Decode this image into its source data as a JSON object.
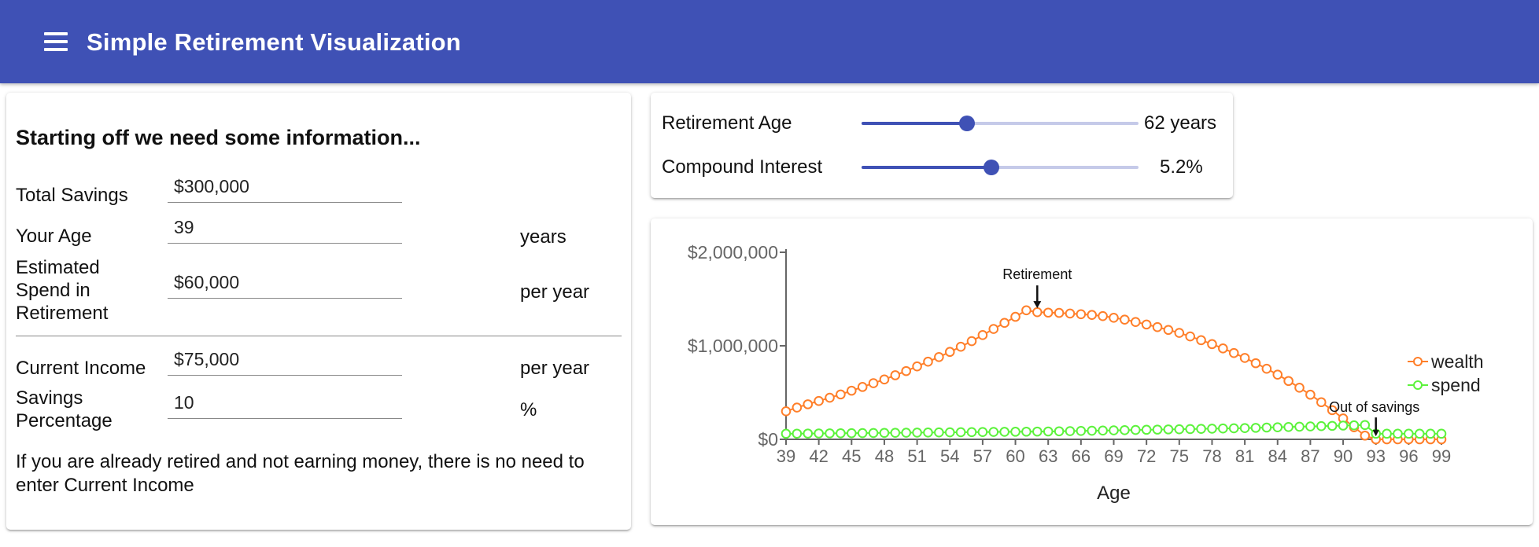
{
  "app": {
    "title": "Simple Retirement Visualization",
    "menu_icon": "hamburger-menu-icon"
  },
  "form": {
    "heading": "Starting off we need some information...",
    "total_savings": {
      "label": "Total Savings",
      "value": "$300,000"
    },
    "age": {
      "label": "Your Age",
      "value": "39",
      "unit": "years"
    },
    "spend": {
      "label_lines": [
        "Estimated",
        "Spend in",
        "Retirement"
      ],
      "value": "$60,000",
      "unit": "per year"
    },
    "income": {
      "label": "Current Income",
      "value": "$75,000",
      "unit": "per year"
    },
    "savings_pct": {
      "label_lines": [
        "Savings",
        "Percentage"
      ],
      "value": "10",
      "unit": "%"
    },
    "note": "If you are already retired and not earning money, there is no need to enter Current Income"
  },
  "sliders": {
    "retirement_age": {
      "label": "Retirement Age",
      "value_text": "62 years",
      "fraction": 0.38
    },
    "interest": {
      "label": "Compound Interest",
      "value_text": "5.2%",
      "fraction": 0.47
    }
  },
  "chart_data": {
    "type": "line",
    "xlabel": "Age",
    "x_ticks": [
      39,
      42,
      45,
      48,
      51,
      54,
      57,
      60,
      63,
      66,
      69,
      72,
      75,
      78,
      81,
      84,
      87,
      90,
      93,
      96,
      99
    ],
    "y_ticks": [
      0,
      1000000,
      2000000
    ],
    "y_tick_labels": [
      "$0",
      "$1,000,000",
      "$2,000,000"
    ],
    "xlim": [
      39,
      99
    ],
    "ylim": [
      0,
      2000000
    ],
    "legend_position": "right",
    "colors": {
      "wealth": "#ff7f2a",
      "spend": "#5cf23c",
      "axis": "#666666"
    },
    "series": [
      {
        "name": "wealth",
        "x": [
          39,
          40,
          41,
          42,
          43,
          44,
          45,
          46,
          47,
          48,
          49,
          50,
          51,
          52,
          53,
          54,
          55,
          56,
          57,
          58,
          59,
          60,
          61,
          62,
          63,
          64,
          65,
          66,
          67,
          68,
          69,
          70,
          71,
          72,
          73,
          74,
          75,
          76,
          77,
          78,
          79,
          80,
          81,
          82,
          83,
          84,
          85,
          86,
          87,
          88,
          89,
          90,
          91,
          92,
          93,
          94,
          95,
          96,
          97,
          98,
          99
        ],
        "values": [
          300000,
          340000,
          375000,
          410000,
          445000,
          480000,
          520000,
          560000,
          600000,
          640000,
          685000,
          730000,
          780000,
          830000,
          880000,
          935000,
          990000,
          1050000,
          1115000,
          1180000,
          1245000,
          1310000,
          1380000,
          1360000,
          1355000,
          1352000,
          1345000,
          1338000,
          1330000,
          1318000,
          1300000,
          1280000,
          1255000,
          1228000,
          1200000,
          1170000,
          1138000,
          1100000,
          1060000,
          1018000,
          972000,
          923000,
          870000,
          814000,
          755000,
          692000,
          624000,
          552000,
          477000,
          397000,
          312000,
          223000,
          129000,
          40000,
          0,
          0,
          0,
          0,
          0,
          0,
          0
        ]
      },
      {
        "name": "spend",
        "x": [
          39,
          40,
          41,
          42,
          43,
          44,
          45,
          46,
          47,
          48,
          49,
          50,
          51,
          52,
          53,
          54,
          55,
          56,
          57,
          58,
          59,
          60,
          61,
          62,
          63,
          64,
          65,
          66,
          67,
          68,
          69,
          70,
          71,
          72,
          73,
          74,
          75,
          76,
          77,
          78,
          79,
          80,
          81,
          82,
          83,
          84,
          85,
          86,
          87,
          88,
          89,
          90,
          91,
          92,
          93,
          94,
          95,
          96,
          97,
          98,
          99
        ],
        "values": [
          60000,
          61000,
          62000,
          63000,
          64000,
          65000,
          66000,
          67000,
          68000,
          69000,
          70000,
          71000,
          72000,
          73000,
          74000,
          75000,
          76000,
          77000,
          78000,
          79000,
          80000,
          81000,
          82000,
          83000,
          84000,
          86000,
          88000,
          90000,
          92000,
          94000,
          96000,
          98000,
          100000,
          102000,
          104000,
          106000,
          108000,
          110000,
          112000,
          114000,
          116000,
          118000,
          120000,
          123000,
          126000,
          129000,
          132000,
          135000,
          138000,
          141000,
          144000,
          147000,
          150000,
          153000,
          60000,
          60000,
          60000,
          60000,
          60000,
          60000,
          60000
        ]
      }
    ],
    "annotations": [
      {
        "text": "Retirement",
        "x": 62,
        "y": 1360000
      },
      {
        "text": "Out of savings",
        "x": 93,
        "y": 150000
      }
    ]
  }
}
